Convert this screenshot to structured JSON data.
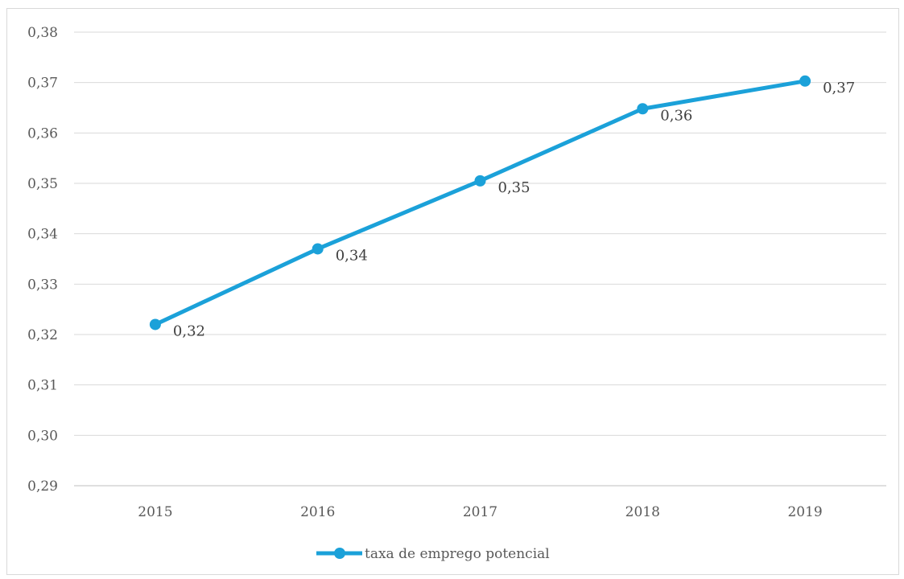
{
  "chart_data": {
    "type": "line",
    "title": "",
    "xlabel": "",
    "ylabel": "",
    "categories": [
      "2015",
      "2016",
      "2017",
      "2018",
      "2019"
    ],
    "series": [
      {
        "name": "taxa de emprego potencial",
        "values": [
          0.322,
          0.337,
          0.3505,
          0.3648,
          0.3703
        ],
        "data_labels": [
          "0,32",
          "0,34",
          "0,35",
          "0,36",
          "0,37"
        ],
        "color": "#1ba1d9"
      }
    ],
    "ylim": [
      0.29,
      0.38
    ],
    "y_ticks": [
      {
        "value": 0.29,
        "label": "0,29"
      },
      {
        "value": 0.3,
        "label": "0,30"
      },
      {
        "value": 0.31,
        "label": "0,31"
      },
      {
        "value": 0.32,
        "label": "0,32"
      },
      {
        "value": 0.33,
        "label": "0,33"
      },
      {
        "value": 0.34,
        "label": "0,34"
      },
      {
        "value": 0.35,
        "label": "0,35"
      },
      {
        "value": 0.36,
        "label": "0,36"
      },
      {
        "value": 0.37,
        "label": "0,37"
      },
      {
        "value": 0.38,
        "label": "0,38"
      }
    ],
    "grid": true,
    "legend_position": "bottom",
    "colors": {
      "gridline": "#d9d9d9",
      "axis": "#bfbfbf"
    }
  }
}
